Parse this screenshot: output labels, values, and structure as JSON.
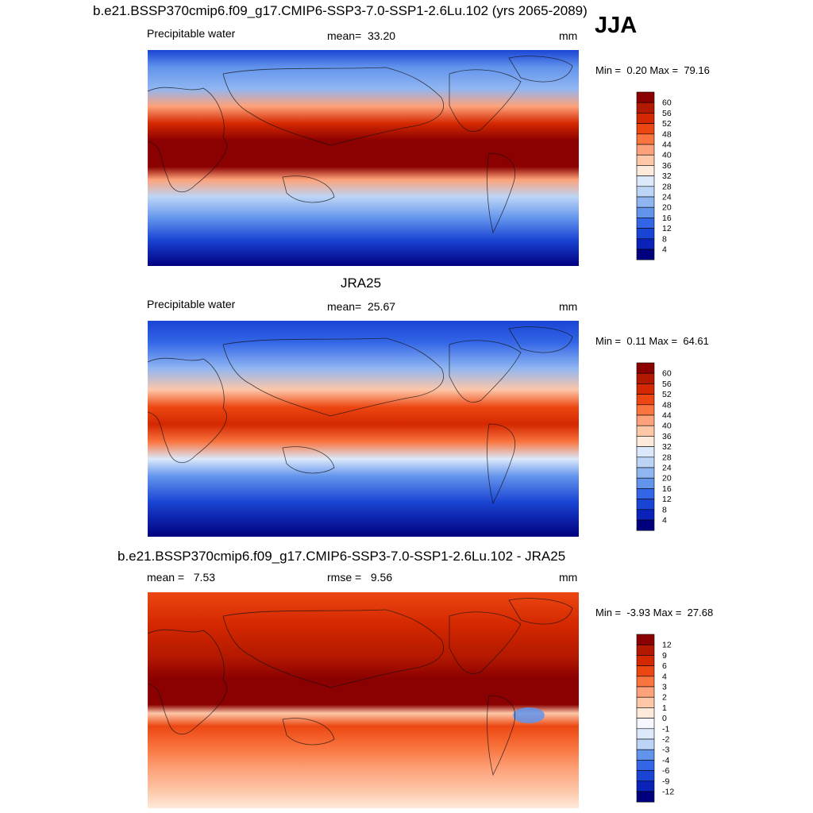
{
  "header": {
    "title": "b.e21.BSSP370cmip6.f09_g17.CMIP6-SSP3-7.0-SSP1-2.6Lu.102 (yrs 2065-2089)",
    "season": "JJA"
  },
  "chart_data": [
    {
      "type": "heatmap",
      "panel": "model",
      "variable": "Precipitable water",
      "mean_label": "mean=",
      "mean_value": "33.20",
      "units": "mm",
      "min_label": "Min =",
      "min_value": "0.20",
      "max_label": "Max =",
      "max_value": "79.16",
      "colorbar": {
        "levels": [
          "60",
          "56",
          "52",
          "48",
          "44",
          "40",
          "36",
          "32",
          "28",
          "24",
          "20",
          "16",
          "12",
          "8",
          "4"
        ],
        "colors": [
          "#8b0000",
          "#b31800",
          "#d42800",
          "#ec4712",
          "#f9743e",
          "#fda27a",
          "#fdc7a8",
          "#feeadb",
          "#dce9fb",
          "#bcd5f7",
          "#90b6f2",
          "#6394ec",
          "#3366e6",
          "#1a44d4",
          "#0a22b8",
          "#00007f"
        ]
      }
    },
    {
      "type": "heatmap",
      "panel": "observations",
      "dataset_title": "JRA25",
      "variable": "Precipitable water",
      "mean_label": "mean=",
      "mean_value": "25.67",
      "units": "mm",
      "min_label": "Min =",
      "min_value": "0.11",
      "max_label": "Max =",
      "max_value": "64.61",
      "colorbar": {
        "levels": [
          "60",
          "56",
          "52",
          "48",
          "44",
          "40",
          "36",
          "32",
          "28",
          "24",
          "20",
          "16",
          "12",
          "8",
          "4"
        ],
        "colors": [
          "#8b0000",
          "#b31800",
          "#d42800",
          "#ec4712",
          "#f9743e",
          "#fda27a",
          "#fdc7a8",
          "#feeadb",
          "#dce9fb",
          "#bcd5f7",
          "#90b6f2",
          "#6394ec",
          "#3366e6",
          "#1a44d4",
          "#0a22b8",
          "#00007f"
        ]
      }
    },
    {
      "type": "heatmap",
      "panel": "difference",
      "diff_title": "b.e21.BSSP370cmip6.f09_g17.CMIP6-SSP3-7.0-SSP1-2.6Lu.102 - JRA25",
      "mean_label": "mean =",
      "mean_value": "7.53",
      "rmse_label": "rmse =",
      "rmse_value": "9.56",
      "units": "mm",
      "min_label": "Min =",
      "min_value": "-3.93",
      "max_label": "Max =",
      "max_value": "27.68",
      "colorbar": {
        "levels": [
          "12",
          "9",
          "6",
          "4",
          "3",
          "2",
          "1",
          "0",
          "-1",
          "-2",
          "-3",
          "-4",
          "-6",
          "-9",
          "-12"
        ],
        "colors": [
          "#8b0000",
          "#b31800",
          "#d42800",
          "#ec4712",
          "#f9743e",
          "#fda27a",
          "#fdc7a8",
          "#feeadb",
          "#f4f7ff",
          "#dce9fb",
          "#bcd5f7",
          "#6394ec",
          "#3366e6",
          "#1a44d4",
          "#0a22b8",
          "#00007f"
        ]
      }
    }
  ]
}
